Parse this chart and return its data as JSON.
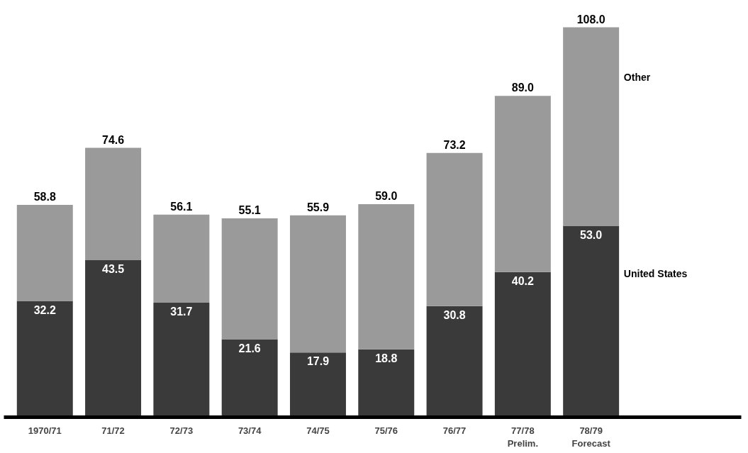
{
  "chart_data": {
    "type": "bar",
    "stacked": true,
    "categories": [
      "1970/71",
      "71/72",
      "72/73",
      "73/74",
      "74/75",
      "75/76",
      "76/77",
      "77/78\nPrelim.",
      "78/79\nForecast"
    ],
    "series": [
      {
        "name": "United States",
        "color": "#3a3a3a",
        "values": [
          32.2,
          43.5,
          31.7,
          21.6,
          17.9,
          18.8,
          30.8,
          40.2,
          53.0
        ],
        "value_labels": [
          "32.2",
          "43.5",
          "31.7",
          "21.6",
          "17.9",
          "18.8",
          "30.8",
          "40.2",
          "53.0"
        ]
      },
      {
        "name": "Other",
        "color": "#9a9a9a",
        "values": [
          26.6,
          31.1,
          24.4,
          33.5,
          38.0,
          40.2,
          42.4,
          48.8,
          55.0
        ]
      }
    ],
    "totals": [
      "58.8",
      "74.6",
      "56.1",
      "55.1",
      "55.9",
      "59.0",
      "73.2",
      "89.0",
      "108.0"
    ],
    "grid": false
  }
}
